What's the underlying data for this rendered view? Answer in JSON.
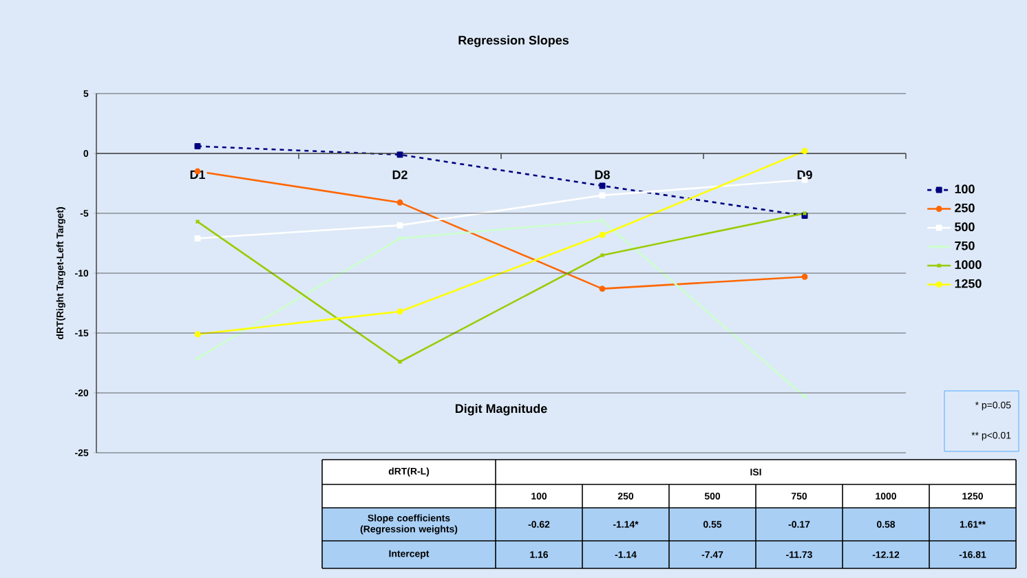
{
  "chart_data": {
    "type": "line",
    "title": "Regression Slopes",
    "xlabel": "Digit Magnitude",
    "ylabel": "dRT(Right Target-Left Target)",
    "categories": [
      "D1",
      "D2",
      "D8",
      "D9"
    ],
    "series": [
      {
        "name": "100",
        "color": "#000080",
        "values": [
          0.6,
          -0.1,
          -2.7,
          -5.2
        ],
        "line_style": "dashed",
        "marker": "square"
      },
      {
        "name": "250",
        "color": "#ff6600",
        "values": [
          -1.5,
          -4.1,
          -11.3,
          -10.3
        ],
        "marker": "circle"
      },
      {
        "name": "500",
        "color": "#ffffff",
        "values": [
          -7.1,
          -6.0,
          -3.5,
          -2.2
        ],
        "marker": "square"
      },
      {
        "name": "750",
        "color": "#ccffcc",
        "values": [
          -17.1,
          -7.1,
          -5.6,
          -20.3
        ],
        "marker": "cross"
      },
      {
        "name": "1000",
        "color": "#99cc00",
        "values": [
          -5.7,
          -17.4,
          -8.5,
          -5.0
        ],
        "marker": "cross"
      },
      {
        "name": "1250",
        "color": "#ffff00",
        "values": [
          -15.1,
          -13.2,
          -6.8,
          0.2
        ],
        "marker": "circle"
      }
    ],
    "ylim": [
      -25,
      5
    ],
    "yticks": [
      -25,
      -20,
      -15,
      -10,
      -5,
      0,
      5
    ],
    "grid": "y",
    "legend": "right",
    "line_style": "solid",
    "annotations": [
      "* p=0.05",
      "** p<0.01",
      "dRT(R-L)",
      "ISI",
      "Slope coefficients (Regression weights)",
      "-0.62",
      "-1.14*",
      "0.55",
      "-0.17",
      "0.58",
      "1.61**",
      "Intercept",
      "1.16",
      "-1.14",
      "-7.47",
      "-11.73",
      "-12.12",
      "-16.81"
    ]
  }
}
